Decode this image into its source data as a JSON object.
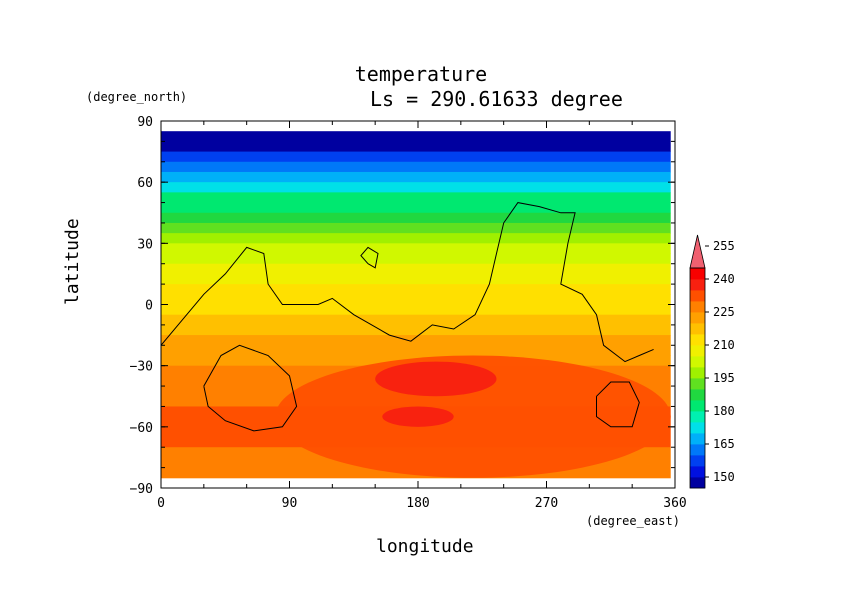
{
  "chart_data": {
    "type": "heatmap",
    "title": "temperature",
    "subtitle": "Ls = 290.61633 degree",
    "xlabel": "longitude",
    "ylabel": "latitude",
    "x_unit": "(degree_east)",
    "y_unit": "(degree_north)",
    "xlim": [
      0,
      360
    ],
    "ylim": [
      -90,
      90
    ],
    "x_ticks": [
      "0",
      "90",
      "180",
      "270",
      "360"
    ],
    "y_ticks": [
      "90",
      "60",
      "30",
      "0",
      "−30",
      "−60",
      "−90"
    ],
    "colorbar": {
      "levels": [
        145,
        150,
        155,
        160,
        165,
        170,
        175,
        180,
        185,
        190,
        195,
        200,
        205,
        210,
        215,
        220,
        225,
        230,
        235,
        240,
        245,
        250,
        255,
        260
      ],
      "tick_labels": [
        "150",
        "165",
        "180",
        "195",
        "210",
        "225",
        "240",
        "255"
      ],
      "colors": [
        "#0000a0",
        "#0010e0",
        "#0040f0",
        "#0078f8",
        "#00b0f8",
        "#00e0e8",
        "#00f0b0",
        "#00e870",
        "#20d840",
        "#60e020",
        "#a0f000",
        "#d0f800",
        "#f0f000",
        "#ffe000",
        "#ffc000",
        "#ffa000",
        "#ff8000",
        "#ff5000",
        "#f82010",
        "#f80000",
        "#f06070"
      ],
      "extend": "max"
    },
    "temperature_by_latitude": {
      "latitude": [
        85,
        80,
        75,
        70,
        65,
        60,
        55,
        50,
        45,
        40,
        35,
        30,
        25,
        20,
        15,
        10,
        5,
        0,
        -5,
        -10,
        -15,
        -20,
        -25,
        -30,
        -40,
        -50,
        -60,
        -70,
        -85
      ],
      "temperature": [
        147,
        149,
        156,
        162,
        168,
        174,
        180,
        184,
        189,
        193,
        197,
        201,
        204,
        206,
        208,
        210,
        212,
        214,
        216,
        218,
        220,
        222,
        224,
        227,
        229,
        231,
        230,
        229,
        227
      ]
    },
    "warm_cores": [
      {
        "lon_range": [
          80,
          380
        ],
        "lat_range": [
          -25,
          -85
        ],
        "temperature": 230
      },
      {
        "lon_range": [
          150,
          235
        ],
        "lat_range": [
          -28,
          -45
        ],
        "temperature": 236
      },
      {
        "lon_range": [
          155,
          205
        ],
        "lat_range": [
          -50,
          -60
        ],
        "temperature": 235
      }
    ],
    "grid": false
  }
}
